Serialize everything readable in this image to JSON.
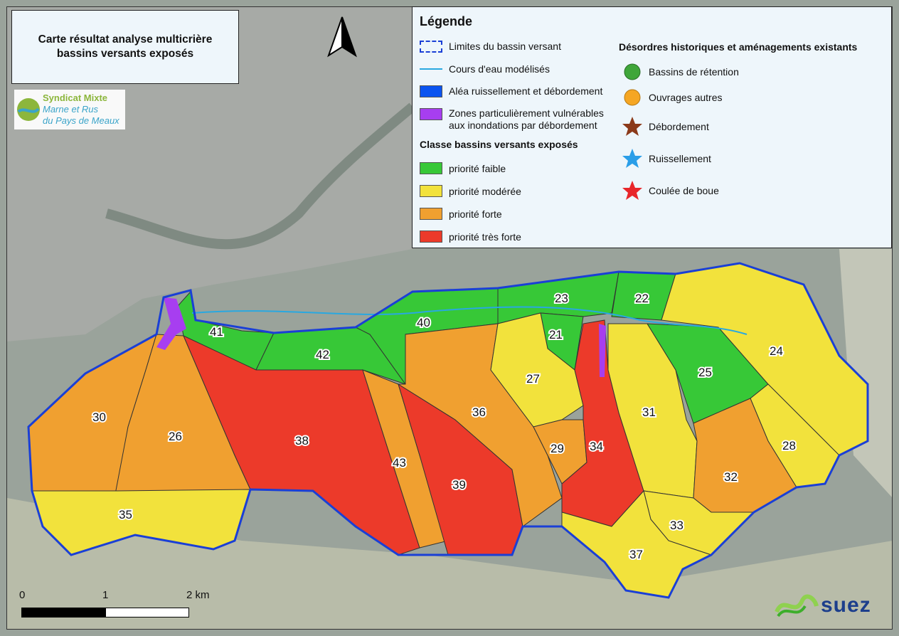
{
  "title": {
    "line1": "Carte résultat analyse multicrière",
    "line2": "bassins versants exposés"
  },
  "logo": {
    "line1": "Syndicat Mixte",
    "line2": "Marne et Rus",
    "line3": "du Pays de Meaux"
  },
  "legend": {
    "title": "Légende",
    "items": [
      {
        "label": "Limites du bassin versant",
        "icon": "dashed-outline",
        "color": "#1a3fd6"
      },
      {
        "label": "Cours d'eau modélisés",
        "icon": "line",
        "color": "#29a8e0"
      },
      {
        "label": "Aléa ruissellement et débordement",
        "icon": "fill",
        "color": "#0a54f0"
      },
      {
        "label_line1": "Zones particulièrement vulnérables",
        "label_line2": "aux inondations par débordement",
        "icon": "fill",
        "color": "#a73ef0"
      }
    ],
    "classes_title": "Classe bassins versants exposés",
    "classes": [
      {
        "label": "priorité faible",
        "color": "#37c837"
      },
      {
        "label": "priorité modérée",
        "color": "#f2e23c"
      },
      {
        "label": "priorité forte",
        "color": "#f0a030"
      },
      {
        "label": "priorité très forte",
        "color": "#ec3a2a"
      }
    ],
    "history_title": "Désordres historiques et aménagements existants",
    "history": [
      {
        "label": "Bassins de rétention",
        "icon": "circle",
        "color": "#3fa63a"
      },
      {
        "label": "Ouvrages autres",
        "icon": "circle",
        "color": "#f5a623"
      },
      {
        "label": "Débordement",
        "icon": "star",
        "color": "#8b3a1a"
      },
      {
        "label": "Ruissellement",
        "icon": "star",
        "color": "#2a9ee8"
      },
      {
        "label": "Coulée de boue",
        "icon": "star",
        "color": "#e8262a"
      }
    ]
  },
  "scale": {
    "l0": "0",
    "l1": "1",
    "l2": "2 km"
  },
  "brand": {
    "name": "suez"
  },
  "basins": [
    {
      "id": "21",
      "priority": "faible"
    },
    {
      "id": "22",
      "priority": "faible"
    },
    {
      "id": "23",
      "priority": "faible"
    },
    {
      "id": "24",
      "priority": "modérée"
    },
    {
      "id": "25",
      "priority": "faible"
    },
    {
      "id": "26",
      "priority": "forte"
    },
    {
      "id": "27",
      "priority": "modérée"
    },
    {
      "id": "28",
      "priority": "modérée"
    },
    {
      "id": "29",
      "priority": "forte"
    },
    {
      "id": "30",
      "priority": "forte"
    },
    {
      "id": "31",
      "priority": "modérée"
    },
    {
      "id": "32",
      "priority": "forte"
    },
    {
      "id": "33",
      "priority": "modérée"
    },
    {
      "id": "34",
      "priority": "très forte"
    },
    {
      "id": "35",
      "priority": "modérée"
    },
    {
      "id": "36",
      "priority": "forte"
    },
    {
      "id": "37",
      "priority": "modérée"
    },
    {
      "id": "38",
      "priority": "très forte"
    },
    {
      "id": "39",
      "priority": "très forte"
    },
    {
      "id": "40",
      "priority": "faible"
    },
    {
      "id": "41",
      "priority": "faible"
    },
    {
      "id": "42",
      "priority": "faible"
    },
    {
      "id": "43",
      "priority": "forte"
    }
  ]
}
